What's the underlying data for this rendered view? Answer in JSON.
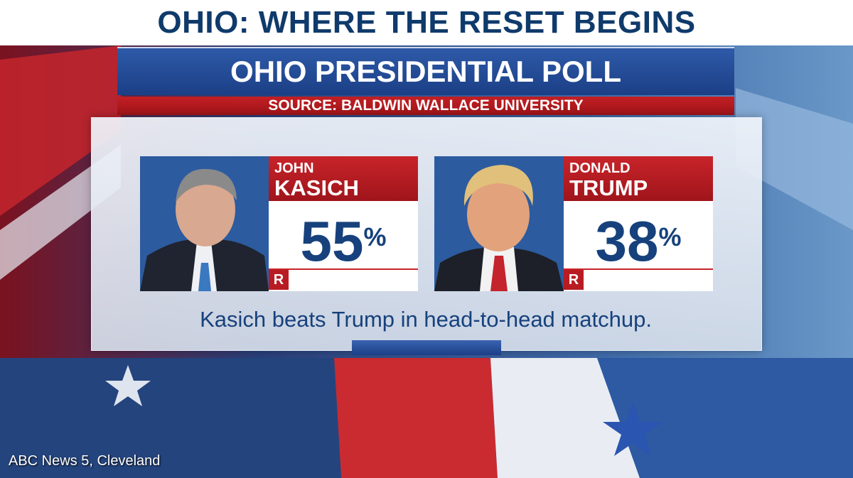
{
  "title": "OHIO: WHERE THE RESET BEGINS",
  "graphic": {
    "title": "OHIO PRESIDENTIAL POLL",
    "source": "SOURCE: BALDWIN WALLACE UNIVERSITY",
    "candidates": [
      {
        "first": "JOHN",
        "last": "KASICH",
        "number": "55",
        "sign": "%",
        "party": "R"
      },
      {
        "first": "DONALD",
        "last": "TRUMP",
        "number": "38",
        "sign": "%",
        "party": "R"
      }
    ],
    "caption": "Kasich beats Trump in head-to-head matchup."
  },
  "watermark": "ABC News 5, Cleveland"
}
